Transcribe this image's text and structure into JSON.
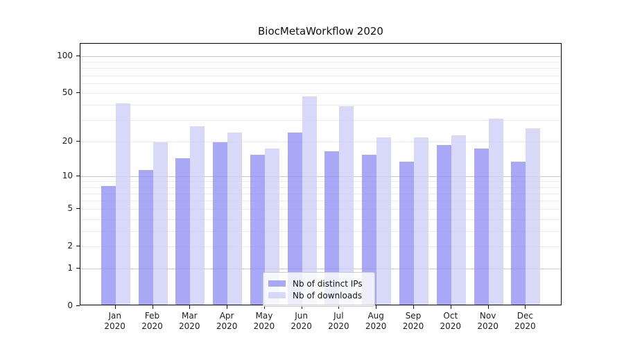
{
  "title": "BiocMetaWorkflow 2020",
  "chart_data": {
    "type": "bar",
    "categories": [
      [
        "Jan",
        "2020"
      ],
      [
        "Feb",
        "2020"
      ],
      [
        "Mar",
        "2020"
      ],
      [
        "Apr",
        "2020"
      ],
      [
        "May",
        "2020"
      ],
      [
        "Jun",
        "2020"
      ],
      [
        "Jul",
        "2020"
      ],
      [
        "Aug",
        "2020"
      ],
      [
        "Sep",
        "2020"
      ],
      [
        "Oct",
        "2020"
      ],
      [
        "Nov",
        "2020"
      ],
      [
        "Dec",
        "2020"
      ]
    ],
    "series": [
      {
        "name": "Nb of distinct IPs",
        "color": "rgba(146,146,244,0.8)",
        "values": [
          8,
          11,
          14,
          19,
          15,
          23,
          16,
          15,
          13,
          18,
          17,
          13
        ]
      },
      {
        "name": "Nb of downloads",
        "color": "rgba(206,206,246,0.8)",
        "values": [
          40,
          19,
          26,
          23,
          17,
          46,
          38,
          21,
          21,
          22,
          30,
          25
        ]
      }
    ],
    "yscale": "log1p",
    "ylim": [
      0,
      126.3
    ],
    "ytick_values": [
      100,
      50,
      20,
      10,
      5,
      2,
      1,
      0
    ],
    "grid_major_values": [
      1,
      10,
      100
    ],
    "grid_minor_values": [
      2,
      3,
      4,
      5,
      6,
      7,
      8,
      9,
      20,
      30,
      40,
      50,
      60,
      70,
      80,
      90
    ],
    "grid": "horizontal",
    "legend_position": "lower center",
    "xlabel": "",
    "ylabel": ""
  }
}
